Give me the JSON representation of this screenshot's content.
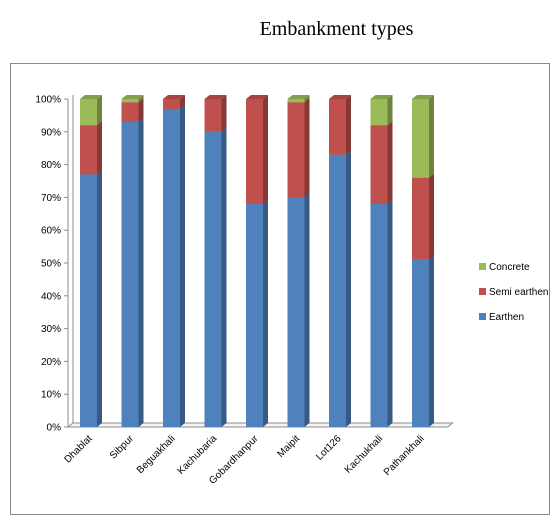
{
  "chart_data": {
    "type": "bar",
    "stacked": true,
    "percent_scale": true,
    "title": "Embankment types",
    "categories": [
      "Dhablat",
      "Sibpur",
      "Beguakhali",
      "Kachubaria",
      "Gobardhanpur",
      "Maipit",
      "Lot126",
      "Kachukhali",
      "Pathankhali"
    ],
    "series": [
      {
        "name": "Earthen",
        "color": "#4f81bd",
        "values": [
          77,
          93,
          97,
          90,
          68,
          70,
          83,
          68,
          51
        ]
      },
      {
        "name": "Semi earthen",
        "color": "#c0504d",
        "values": [
          15,
          6,
          3,
          10,
          32,
          29,
          17,
          24,
          25
        ]
      },
      {
        "name": "Concrete",
        "color": "#9bbb59",
        "values": [
          8,
          1,
          0,
          0,
          0,
          1,
          0,
          8,
          24
        ]
      }
    ],
    "ylim": [
      0,
      100
    ],
    "yticks": [
      "0%",
      "10%",
      "20%",
      "30%",
      "40%",
      "50%",
      "60%",
      "70%",
      "80%",
      "90%",
      "100%"
    ],
    "legend_position": "right",
    "legend_order": [
      "Concrete",
      "Semi earthen",
      "Earthen"
    ],
    "grid": false
  }
}
